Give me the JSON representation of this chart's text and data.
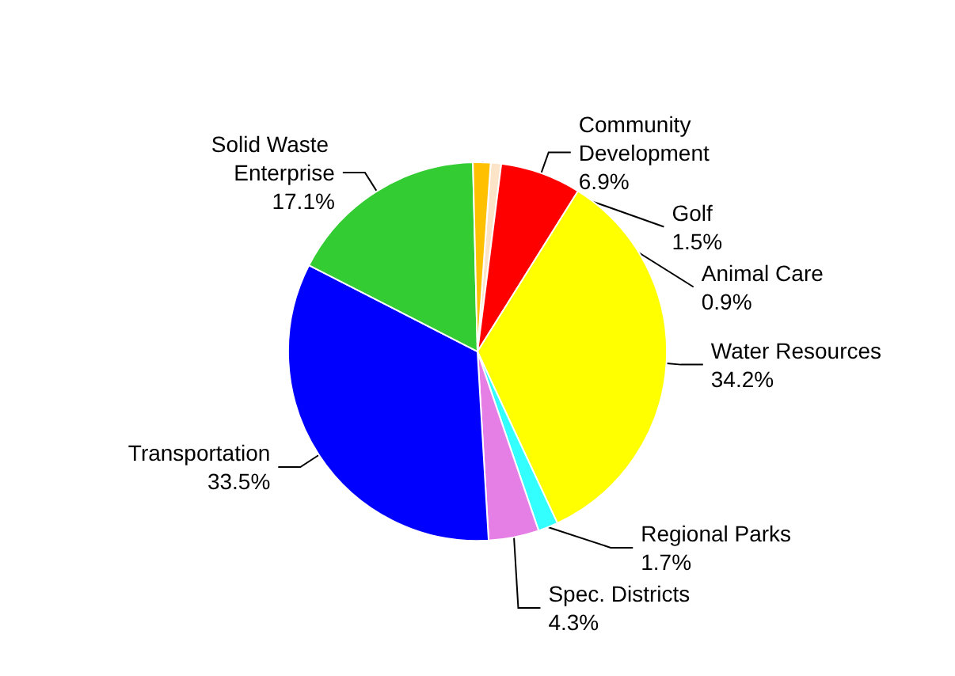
{
  "chart_data": {
    "type": "pie",
    "categories": [
      "Animal Care",
      "Community Development",
      "Water Resources",
      "Regional Parks",
      "Spec. Districts",
      "Transportation",
      "Solid Waste Enterprise",
      "Golf"
    ],
    "values": [
      0.9,
      6.9,
      34.2,
      1.7,
      4.3,
      33.5,
      17.1,
      1.5
    ],
    "value_labels": [
      "0.9%",
      "6.9%",
      "34.2%",
      "1.7%",
      "4.3%",
      "33.5%",
      "17.1%",
      "1.5%"
    ],
    "colors": [
      "#fce4c8",
      "#ff0000",
      "#ffff00",
      "#33ffff",
      "#e57ee5",
      "#0000ff",
      "#33cc33",
      "#ffc000"
    ],
    "legend": false
  }
}
